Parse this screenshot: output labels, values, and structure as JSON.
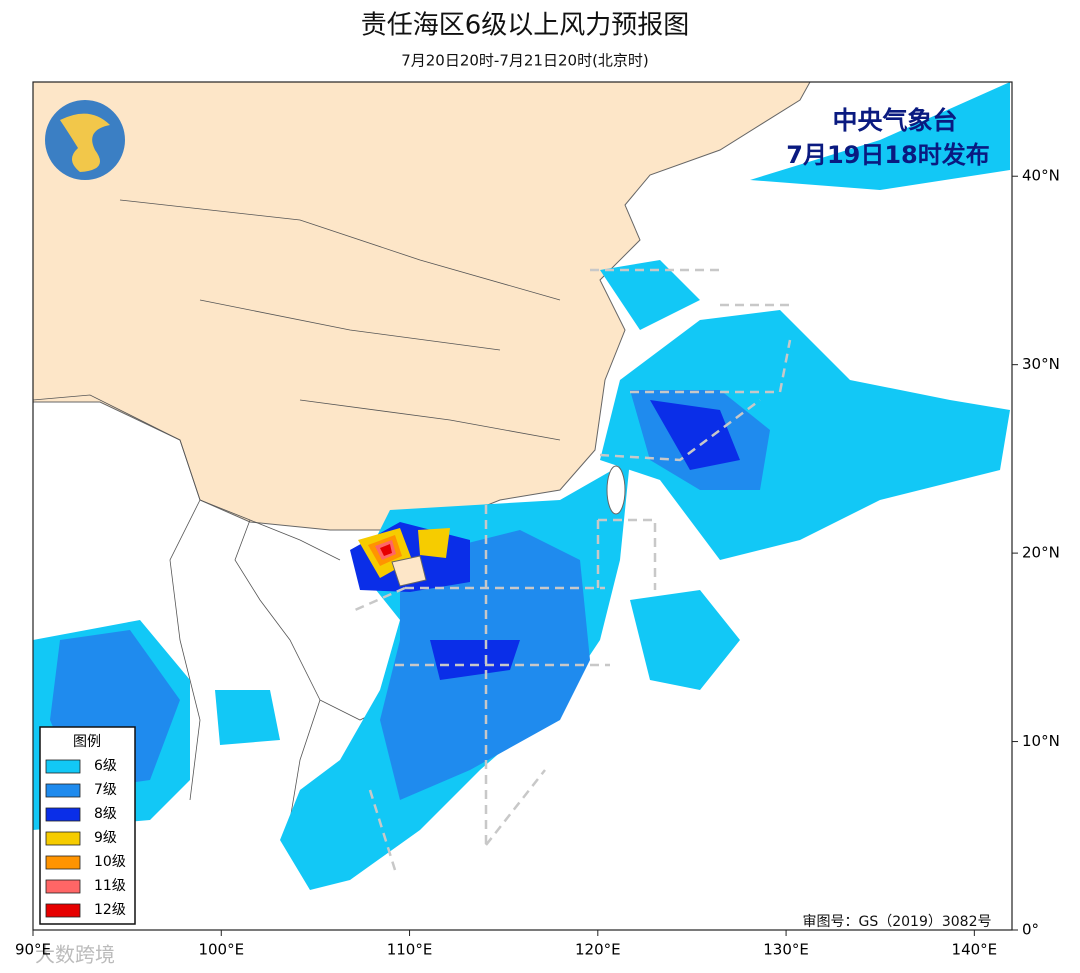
{
  "header": {
    "title": "责任海区6级以上风力预报图",
    "subtitle": "7月20日20时-7月21日20时(北京时)"
  },
  "issuer": {
    "name": "中央气象台",
    "issued": "7月19日18时发布"
  },
  "map": {
    "xlim": [
      90,
      142
    ],
    "ylim": [
      0,
      45
    ],
    "xticks": [
      {
        "value": 90,
        "label": "90°E"
      },
      {
        "value": 100,
        "label": "100°E"
      },
      {
        "value": 110,
        "label": "110°E"
      },
      {
        "value": 120,
        "label": "120°E"
      },
      {
        "value": 130,
        "label": "130°E"
      },
      {
        "value": 140,
        "label": "140°E"
      }
    ],
    "yticks": [
      {
        "value": 0,
        "label": "0°"
      },
      {
        "value": 10,
        "label": "10°N"
      },
      {
        "value": 20,
        "label": "20°N"
      },
      {
        "value": 30,
        "label": "30°N"
      },
      {
        "value": 40,
        "label": "40°N"
      }
    ]
  },
  "legend": {
    "title": "图例",
    "items": [
      {
        "label": "6级",
        "color": "#12c8f6"
      },
      {
        "label": "7级",
        "color": "#1f8bee"
      },
      {
        "label": "8级",
        "color": "#0a2ee8"
      },
      {
        "label": "9级",
        "color": "#f6cc00"
      },
      {
        "label": "10级",
        "color": "#ff9400"
      },
      {
        "label": "11级",
        "color": "#ff6666"
      },
      {
        "label": "12级",
        "color": "#e60000"
      }
    ]
  },
  "approval": "审图号：GS（2019）3082号",
  "watermark": "大数跨境"
}
